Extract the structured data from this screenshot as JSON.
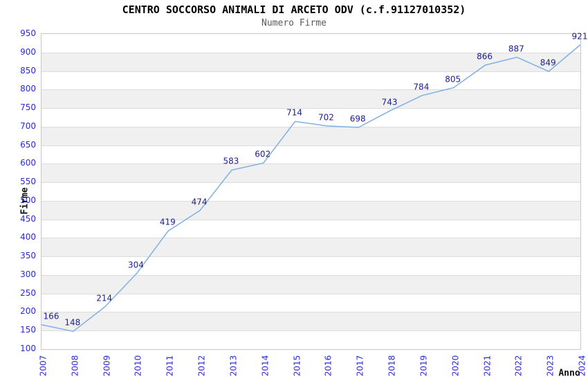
{
  "title": "CENTRO SOCCORSO ANIMALI DI ARCETO ODV (c.f.91127010352)",
  "subtitle": "Numero Firme",
  "chart_data": {
    "type": "line",
    "x": [
      "2007",
      "2008",
      "2009",
      "2010",
      "2011",
      "2012",
      "2013",
      "2014",
      "2015",
      "2016",
      "2017",
      "2018",
      "2019",
      "2020",
      "2021",
      "2022",
      "2023",
      "2024"
    ],
    "series": [
      {
        "name": "Numero Firme",
        "values": [
          166,
          148,
          214,
          304,
          419,
          474,
          583,
          602,
          714,
          702,
          698,
          743,
          784,
          805,
          866,
          887,
          849,
          921
        ]
      }
    ],
    "title": "CENTRO SOCCORSO ANIMALI DI ARCETO ODV (c.f.91127010352)",
    "subtitle": "Numero Firme",
    "xlabel": "Anno",
    "ylabel": "Firme",
    "ylim": [
      100,
      950
    ],
    "ytick_step": 50,
    "grid": true,
    "background_bands": "alternating white / light-gray, 50-unit tall",
    "point_labels_visible": true,
    "legend_position": "none"
  },
  "colors": {
    "line": "#7fafe4",
    "tick_label": "#2a2ad2",
    "data_label": "#20208a",
    "band_gray": "#f0f0f0",
    "band_white": "#ffffff",
    "gridline": "#dcdcdc",
    "plot_border": "#c8c8c8",
    "title": "#000000",
    "subtitle": "#5a5a5a",
    "axis_title": "#111111"
  }
}
